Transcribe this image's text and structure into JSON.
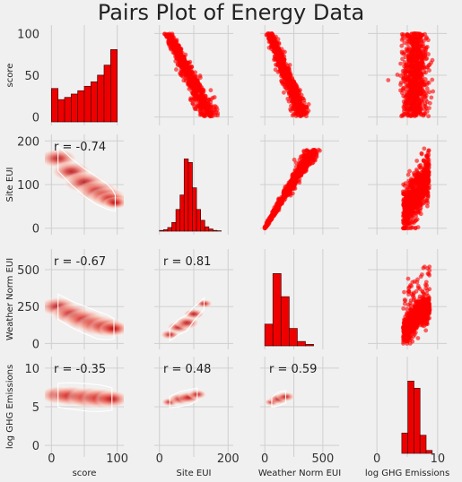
{
  "chart_data": {
    "type": "pairs",
    "title": "Pairs Plot of Energy Data",
    "variables": [
      "score",
      "Site EUI",
      "Weather Norm EUI",
      "log GHG Emissions"
    ],
    "colors": {
      "points": "#ff0000",
      "hist": "#ee0000",
      "hist_edge": "#4a0000",
      "grid": "#cfcfcf",
      "background": "#f0f0f0"
    },
    "axes": [
      {
        "name": "score",
        "range": [
          -10,
          110
        ],
        "ticks": [
          0,
          50,
          100
        ],
        "xticks": [
          0,
          100
        ]
      },
      {
        "name": "Site EUI",
        "range": [
          -15,
          215
        ],
        "ticks": [
          0,
          100,
          200
        ],
        "xticks": [
          0,
          200
        ]
      },
      {
        "name": "Weather Norm EUI",
        "range": [
          -40,
          640
        ],
        "ticks": [
          0,
          250,
          500
        ],
        "xticks": [
          0,
          500
        ]
      },
      {
        "name": "log GHG Emissions",
        "range": [
          -1.5,
          11.5
        ],
        "ticks": [
          0,
          5,
          10
        ],
        "xticks": [
          0,
          10
        ]
      }
    ],
    "histograms": [
      {
        "variable": "score",
        "bins": [
          0,
          10,
          20,
          30,
          40,
          50,
          60,
          70,
          80,
          90,
          100
        ],
        "counts": [
          3,
          2,
          2.2,
          2.5,
          2.8,
          3.2,
          3.6,
          4.2,
          5.1,
          6.5
        ]
      },
      {
        "variable": "Site EUI",
        "bins": [
          0,
          12,
          24,
          36,
          48,
          60,
          72,
          84,
          96,
          108,
          120,
          132,
          144,
          156,
          168,
          180
        ],
        "counts": [
          1,
          2,
          5,
          12,
          30,
          50,
          100,
          95,
          60,
          30,
          15,
          6,
          3,
          1,
          0.5
        ]
      },
      {
        "variable": "Weather Norm EUI",
        "bins": [
          0,
          70,
          140,
          210,
          280,
          350,
          420
        ],
        "counts": [
          30,
          100,
          68,
          24,
          6,
          2
        ]
      },
      {
        "variable": "log GHG Emissions",
        "bins": [
          4.1,
          5.1,
          6.1,
          7.1,
          8.1,
          9.1
        ],
        "counts": [
          28,
          100,
          90,
          25,
          4
        ]
      }
    ],
    "correlations": [
      {
        "row": "Site EUI",
        "col": "score",
        "label": "r = -0.74"
      },
      {
        "row": "Weather Norm EUI",
        "col": "score",
        "label": "r = -0.67"
      },
      {
        "row": "Weather Norm EUI",
        "col": "Site EUI",
        "label": "r = 0.81"
      },
      {
        "row": "log GHG Emissions",
        "col": "score",
        "label": "r = -0.35"
      },
      {
        "row": "log GHG Emissions",
        "col": "Site EUI",
        "label": "r = 0.48"
      },
      {
        "row": "log GHG Emissions",
        "col": "Weather Norm EUI",
        "label": "r = 0.59"
      }
    ],
    "grid": true
  }
}
